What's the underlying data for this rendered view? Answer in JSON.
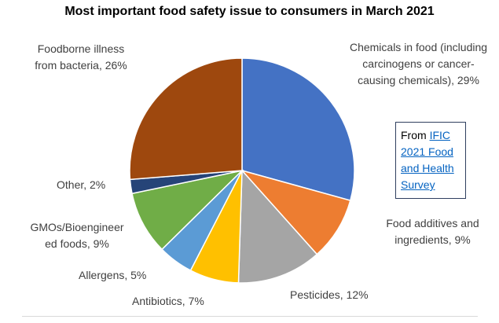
{
  "chart_data": {
    "type": "pie",
    "title": "Most important food safety issue to consumers in March 2021",
    "values": [
      29,
      9,
      12,
      7,
      5,
      9,
      2,
      26
    ],
    "value_labels": [
      "Chemicals in food (including carcinogens or cancer-causing chemicals), 29%",
      "Food additives and ingredients, 9%",
      "Pesticides, 12%",
      "Antibiotics, 7%",
      "Allergens, 5%",
      "GMOs/Bioengineered foods, 9%",
      "Other, 2%",
      "Foodborne illness from bacteria, 26%"
    ],
    "colors": [
      "#4472c4",
      "#ed7d31",
      "#a5a5a5",
      "#ffc000",
      "#5b9bd5",
      "#70ad47",
      "#264478",
      "#9e480e"
    ],
    "annotation": {
      "prefix": "From",
      "link": "IFIC 2021 Food and Health Survey"
    }
  }
}
